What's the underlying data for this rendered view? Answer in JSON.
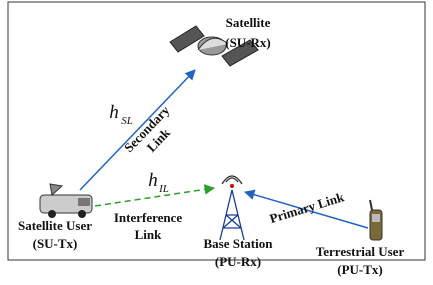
{
  "nodes": [
    {
      "label": [
        "Satellite",
        "(SU-Rx)"
      ]
    },
    {
      "label": [
        "Satellite User",
        "(SU-Tx)"
      ]
    },
    {
      "label": [
        "Base Station",
        "(PU-Rx)"
      ]
    },
    {
      "label": [
        "Terrestrial User",
        "(PU-Tx)"
      ]
    }
  ],
  "links": [
    {
      "label": [
        "Secondary",
        "Link"
      ],
      "channel": {
        "symbol": "h",
        "subscript": "SL"
      }
    },
    {
      "label": [
        "Interference",
        "Link"
      ],
      "channel": {
        "symbol": "h",
        "subscript": "IL"
      }
    },
    {
      "label": [
        "Primary Link"
      ]
    }
  ]
}
